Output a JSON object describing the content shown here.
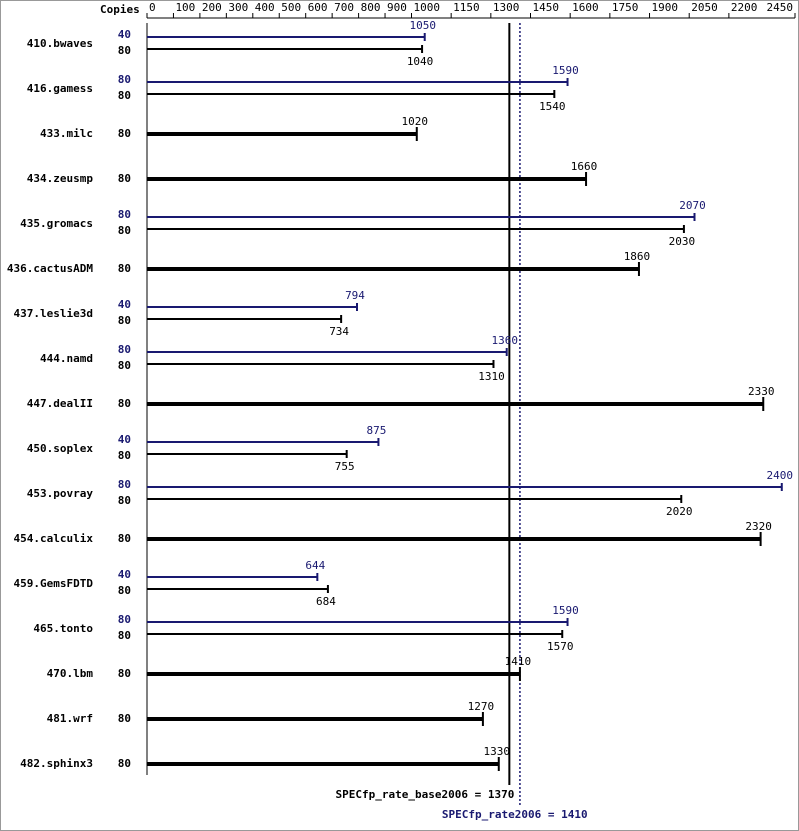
{
  "chart_data": {
    "type": "bar",
    "copies_header": "Copies",
    "xlim": [
      0,
      2450
    ],
    "xticks": [
      0,
      100,
      200,
      300,
      400,
      500,
      600,
      700,
      800,
      900,
      1000,
      1150,
      1300,
      1450,
      1600,
      1750,
      1900,
      2050,
      2200,
      2450
    ],
    "categories": [
      "410.bwaves",
      "416.gamess",
      "433.milc",
      "434.zeusmp",
      "435.gromacs",
      "436.cactusADM",
      "437.leslie3d",
      "444.namd",
      "447.dealII",
      "450.soplex",
      "453.povray",
      "454.calculix",
      "459.GemsFDTD",
      "465.tonto",
      "470.lbm",
      "481.wrf",
      "482.sphinx3"
    ],
    "series": [
      {
        "color": "#191970",
        "copies": [
          40,
          80,
          null,
          null,
          80,
          null,
          40,
          80,
          null,
          40,
          80,
          null,
          40,
          80,
          null,
          null,
          null
        ],
        "values": [
          1050,
          1590,
          null,
          null,
          2070,
          null,
          794,
          1360,
          null,
          875,
          2400,
          null,
          644,
          1590,
          null,
          null,
          null
        ]
      },
      {
        "color": "#000000",
        "copies": [
          80,
          80,
          80,
          80,
          80,
          80,
          80,
          80,
          80,
          80,
          80,
          80,
          80,
          80,
          80,
          80,
          80
        ],
        "values": [
          1040,
          1540,
          1020,
          1660,
          2030,
          1860,
          734,
          1310,
          2330,
          755,
          2020,
          2320,
          684,
          1570,
          1410,
          1270,
          1330
        ]
      }
    ],
    "reference_lines": [
      {
        "value": 1370,
        "label": "SPECfp_rate_base2006 = 1370",
        "color": "#000000",
        "style": "solid"
      },
      {
        "value": 1410,
        "label": "SPECfp_rate2006 = 1410",
        "color": "#191970",
        "style": "dotted"
      }
    ]
  }
}
